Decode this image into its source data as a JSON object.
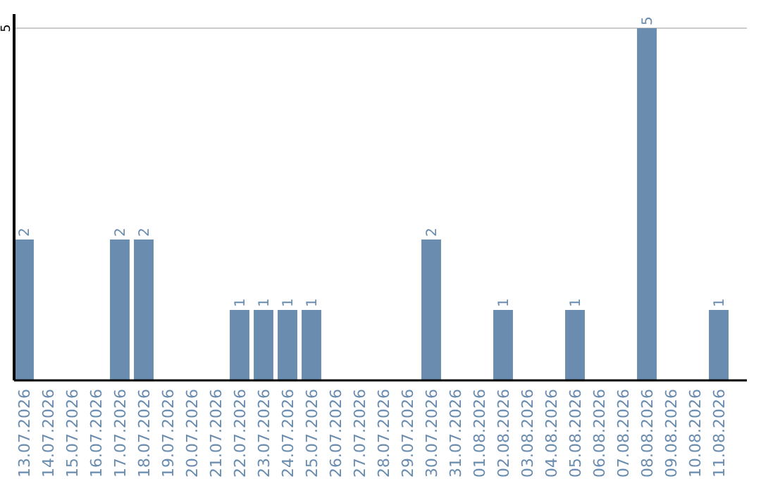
{
  "chart_data": {
    "type": "bar",
    "categories": [
      "13.07.2026",
      "14.07.2026",
      "15.07.2026",
      "16.07.2026",
      "17.07.2026",
      "18.07.2026",
      "19.07.2026",
      "20.07.2026",
      "21.07.2026",
      "22.07.2026",
      "23.07.2026",
      "24.07.2026",
      "25.07.2026",
      "26.07.2026",
      "27.07.2026",
      "28.07.2026",
      "29.07.2026",
      "30.07.2026",
      "31.07.2026",
      "01.08.2026",
      "02.08.2026",
      "03.08.2026",
      "04.08.2026",
      "05.08.2026",
      "06.08.2026",
      "07.08.2026",
      "08.08.2026",
      "09.08.2026",
      "10.08.2026",
      "11.08.2026"
    ],
    "values": [
      2,
      0,
      0,
      0,
      2,
      2,
      0,
      0,
      0,
      1,
      1,
      1,
      1,
      0,
      0,
      0,
      0,
      2,
      0,
      0,
      1,
      0,
      0,
      1,
      0,
      0,
      5,
      0,
      0,
      1
    ],
    "value_labels": [
      "2",
      null,
      null,
      null,
      "2",
      "2",
      null,
      null,
      null,
      "1",
      "1",
      "1",
      "1",
      null,
      null,
      null,
      null,
      "2",
      null,
      null,
      "1",
      null,
      null,
      "1",
      null,
      null,
      "5",
      null,
      null,
      "1"
    ],
    "color": "#6a8caf",
    "ylim": [
      0,
      5.2
    ],
    "yticks": [
      5
    ],
    "grid": "y"
  }
}
